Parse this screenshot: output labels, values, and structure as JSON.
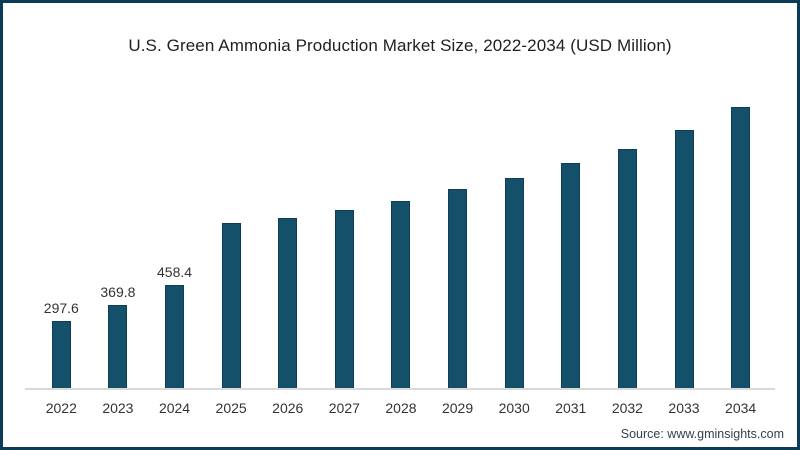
{
  "frame": {
    "border_color": "#0d3c56",
    "background_color": "#ffffff"
  },
  "chart_data": {
    "type": "bar",
    "title": "U.S. Green Ammonia Production Market Size, 2022-2034 (USD Million)",
    "categories": [
      "2022",
      "2023",
      "2024",
      "2025",
      "2026",
      "2027",
      "2028",
      "2029",
      "2030",
      "2031",
      "2032",
      "2033",
      "2034"
    ],
    "values": [
      297.6,
      369.8,
      458.4,
      735,
      757,
      792,
      832,
      885,
      934,
      1000,
      1064,
      1148,
      1250
    ],
    "data_labels": [
      "297.6",
      "369.8",
      "458.4",
      "",
      "",
      "",
      "",
      "",
      "",
      "",
      "",
      "",
      ""
    ],
    "xlabel": "",
    "ylabel": "",
    "ylim": [
      0,
      1320
    ],
    "grid": false,
    "legend_position": "none",
    "bar_color": "#145069",
    "bar_border_color": "#0d3e55",
    "axis_line_color": "#d9d9d9"
  },
  "source": {
    "label": "Source: www.gminsights.com"
  }
}
